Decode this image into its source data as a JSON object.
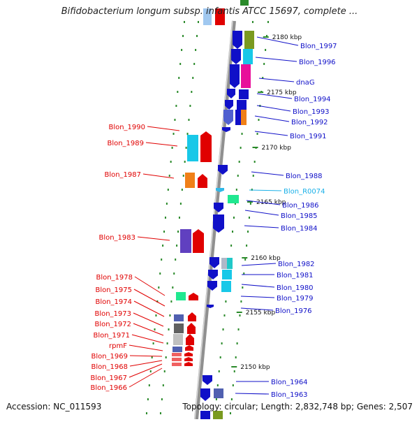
{
  "title": "Bifidobacterium longum subsp. infantis ATCC 15697, complete ...",
  "accession": "Accession: NC_011593",
  "summary": "Topology: circular; Length: 2,832,748 bp; Genes: 2,507",
  "colors": {
    "forward": "#e00000",
    "reverse": "#1010c8",
    "rna": "#1ab0e8",
    "tick": "#2a8a2a",
    "backbone": "#909090"
  },
  "kbp_marks": [
    "2180 kbp",
    "2175 kbp",
    "2170 kbp",
    "2165 kbp",
    "2160 kbp",
    "2155 kbp",
    "2150 kbp"
  ],
  "right_labels": [
    {
      "name": "Blon_1997"
    },
    {
      "name": "Blon_1996"
    },
    {
      "name": "dnaG"
    },
    {
      "name": "Blon_1994"
    },
    {
      "name": "Blon_1993"
    },
    {
      "name": "Blon_1992"
    },
    {
      "name": "Blon_1991"
    },
    {
      "name": "Blon_1988"
    },
    {
      "name": "Blon_R0074"
    },
    {
      "name": "Blon_1986"
    },
    {
      "name": "Blon_1985"
    },
    {
      "name": "Blon_1984"
    },
    {
      "name": "Blon_1982"
    },
    {
      "name": "Blon_1981"
    },
    {
      "name": "Blon_1980"
    },
    {
      "name": "Blon_1979"
    },
    {
      "name": "Blon_1976"
    },
    {
      "name": "Blon_1964"
    },
    {
      "name": "Blon_1963"
    }
  ],
  "left_labels": [
    {
      "name": "Blon_1990"
    },
    {
      "name": "Blon_1989"
    },
    {
      "name": "Blon_1987"
    },
    {
      "name": "Blon_1983"
    },
    {
      "name": "Blon_1978"
    },
    {
      "name": "Blon_1975"
    },
    {
      "name": "Blon_1974"
    },
    {
      "name": "Blon_1973"
    },
    {
      "name": "Blon_1972"
    },
    {
      "name": "Blon_1971"
    },
    {
      "name": "rpmF"
    },
    {
      "name": "Blon_1969"
    },
    {
      "name": "Blon_1968"
    },
    {
      "name": "Blon_1967"
    },
    {
      "name": "Blon_1966"
    }
  ]
}
